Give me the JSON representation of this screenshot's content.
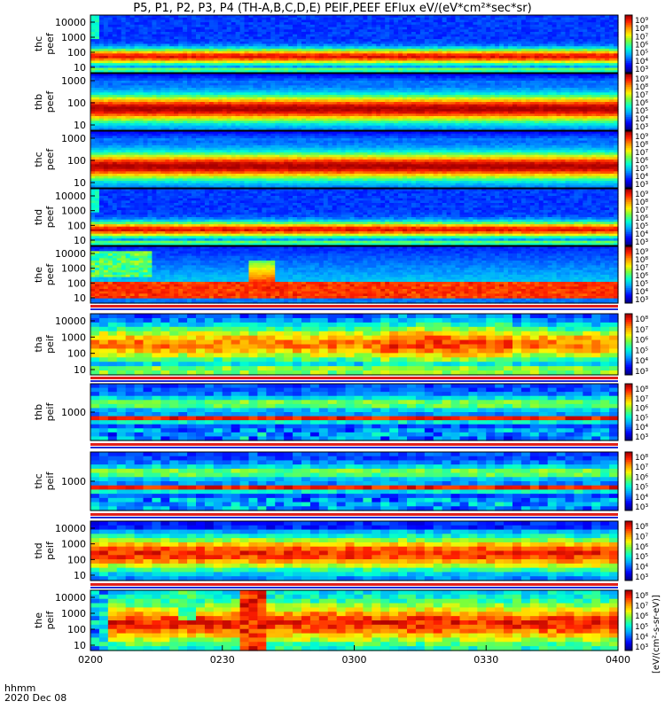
{
  "title": "P5, P1, P2, P3, P4 (TH-A,B,C,D,E) PEIF,PEEF EFlux eV/(eV*cm²*sec*sr)",
  "footer": {
    "time_label": "hhmm",
    "date_label": "2020 Dec 08"
  },
  "colorbar_unit_label": "[eV/(cm²-s-sr-eV)]",
  "colors": {
    "background": "#ffffff",
    "separator_blue": "#1f2bd8",
    "separator_red": "#e0201c"
  },
  "chart_data": {
    "type": "heatmap",
    "x_axis": {
      "range": [
        "0200",
        "0400"
      ],
      "tick_labels": [
        "0200",
        "0230",
        "0300",
        "0330",
        "0400"
      ]
    },
    "panels": [
      {
        "id": "the-peef-1",
        "label1": "thc",
        "label2": "peef",
        "ylog": true,
        "y_ticks": [
          "10000",
          "1000",
          "100",
          "10"
        ],
        "cb_ticks": [
          "10⁹",
          "10⁸",
          "10⁷",
          "10⁶",
          "10⁵",
          "10⁴",
          "10³"
        ],
        "profile": "electron_a"
      },
      {
        "id": "thb-peef",
        "label1": "thb",
        "label2": "peef",
        "ylog": true,
        "y_ticks": [
          "1000",
          "100",
          "10"
        ],
        "cb_ticks": [
          "10⁹",
          "10⁸",
          "10⁷",
          "10⁶",
          "10⁵",
          "10⁴",
          "10³"
        ],
        "profile": "electron_b"
      },
      {
        "id": "thc-peef",
        "label1": "thc",
        "label2": "peef",
        "ylog": true,
        "y_ticks": [
          "1000",
          "100",
          "10"
        ],
        "cb_ticks": [
          "10⁹",
          "10⁸",
          "10⁷",
          "10⁶",
          "10⁵",
          "10⁴",
          "10³"
        ],
        "profile": "electron_b"
      },
      {
        "id": "thd-peef",
        "label1": "thd",
        "label2": "peef",
        "ylog": true,
        "y_ticks": [
          "10000",
          "1000",
          "100",
          "10"
        ],
        "cb_ticks": [
          "10⁹",
          "10⁸",
          "10⁷",
          "10⁶",
          "10⁵",
          "10⁴",
          "10³"
        ],
        "profile": "electron_a"
      },
      {
        "id": "the-peef",
        "label1": "the",
        "label2": "peef",
        "ylog": true,
        "y_ticks": [
          "10000",
          "1000",
          "100",
          "10"
        ],
        "cb_ticks": [
          "10⁹",
          "10⁸",
          "10⁷",
          "10⁶",
          "10⁵",
          "10⁴",
          "10³"
        ],
        "profile": "electron_e"
      },
      {
        "id": "tha-peif",
        "label1": "tha",
        "label2": "peif",
        "ylog": true,
        "y_ticks": [
          "10000",
          "1000",
          "100",
          "10"
        ],
        "cb_ticks": [
          "10⁸",
          "10⁷",
          "10⁶",
          "10⁵",
          "10⁴",
          "10³"
        ],
        "profile": "ion_a"
      },
      {
        "id": "thb-peif",
        "label1": "thb",
        "label2": "peif",
        "ylog": true,
        "y_ticks": [
          "1000"
        ],
        "cb_ticks": [
          "10⁸",
          "10⁷",
          "10⁶",
          "10⁵",
          "10⁴",
          "10³"
        ],
        "profile": "ion_b"
      },
      {
        "id": "thc-peif",
        "label1": "thc",
        "label2": "peif",
        "ylog": true,
        "y_ticks": [
          "1000"
        ],
        "cb_ticks": [
          "10⁸",
          "10⁷",
          "10⁶",
          "10⁵",
          "10⁴",
          "10³"
        ],
        "profile": "ion_b"
      },
      {
        "id": "thd-peif",
        "label1": "thd",
        "label2": "peif",
        "ylog": true,
        "y_ticks": [
          "10000",
          "1000",
          "100",
          "10"
        ],
        "cb_ticks": [
          "10⁸",
          "10⁷",
          "10⁶",
          "10⁵",
          "10⁴",
          "10³"
        ],
        "profile": "ion_d"
      },
      {
        "id": "the-peif",
        "label1": "the",
        "label2": "peif",
        "ylog": true,
        "y_ticks": [
          "10000",
          "1000",
          "100",
          "10"
        ],
        "cb_ticks": [
          "10⁸",
          "10⁷",
          "10⁶",
          "10⁵",
          "10⁴",
          "10³"
        ],
        "profile": "ion_e"
      }
    ]
  }
}
